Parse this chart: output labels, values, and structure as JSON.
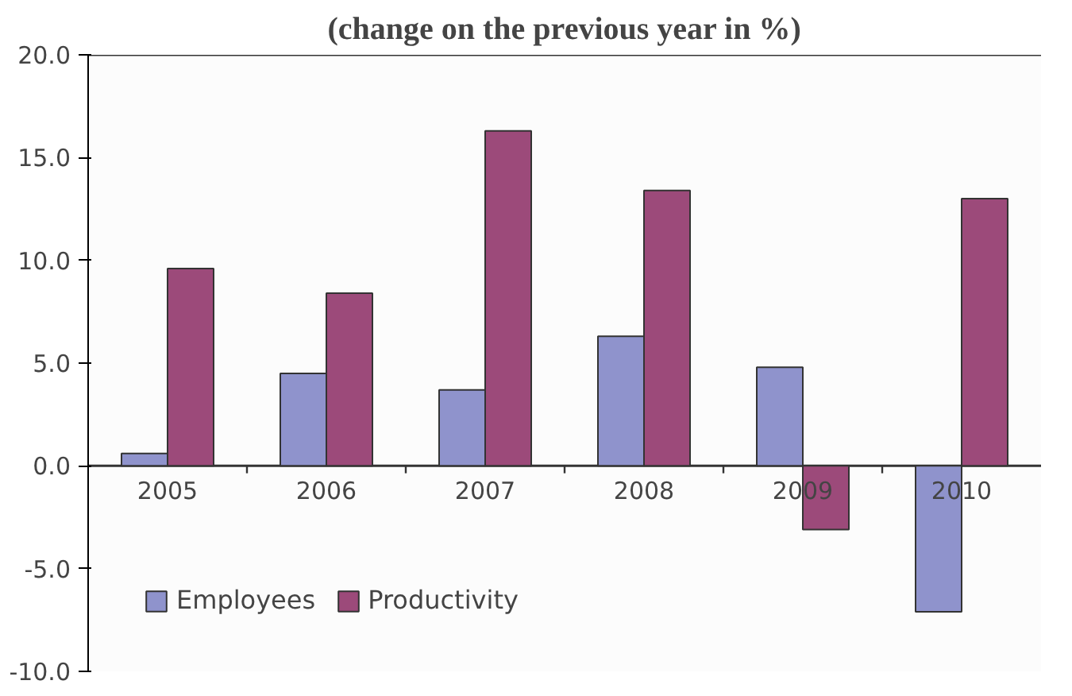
{
  "chart_data": {
    "type": "bar",
    "title": "(change on the previous year in %)",
    "categories": [
      "2005",
      "2006",
      "2007",
      "2008",
      "2009",
      "2010"
    ],
    "series": [
      {
        "name": "Employees",
        "color": "#8f93cc",
        "values": [
          0.6,
          4.5,
          3.7,
          6.3,
          4.8,
          -7.1
        ]
      },
      {
        "name": "Productivity",
        "color": "#9c4a7a",
        "values": [
          9.6,
          8.4,
          16.3,
          13.4,
          -3.1,
          13.0
        ]
      }
    ],
    "ylim": [
      -10,
      20
    ],
    "yticks": [
      {
        "value": -10,
        "label": "-10.0"
      },
      {
        "value": -5,
        "label": "-5.0"
      },
      {
        "value": 0,
        "label": "0.0"
      },
      {
        "value": 5,
        "label": "5.0"
      },
      {
        "value": 10,
        "label": "10.0"
      },
      {
        "value": 15,
        "label": "15.0"
      },
      {
        "value": 20,
        "label": "20.0"
      }
    ],
    "grid": false,
    "legend": "bottom left"
  }
}
